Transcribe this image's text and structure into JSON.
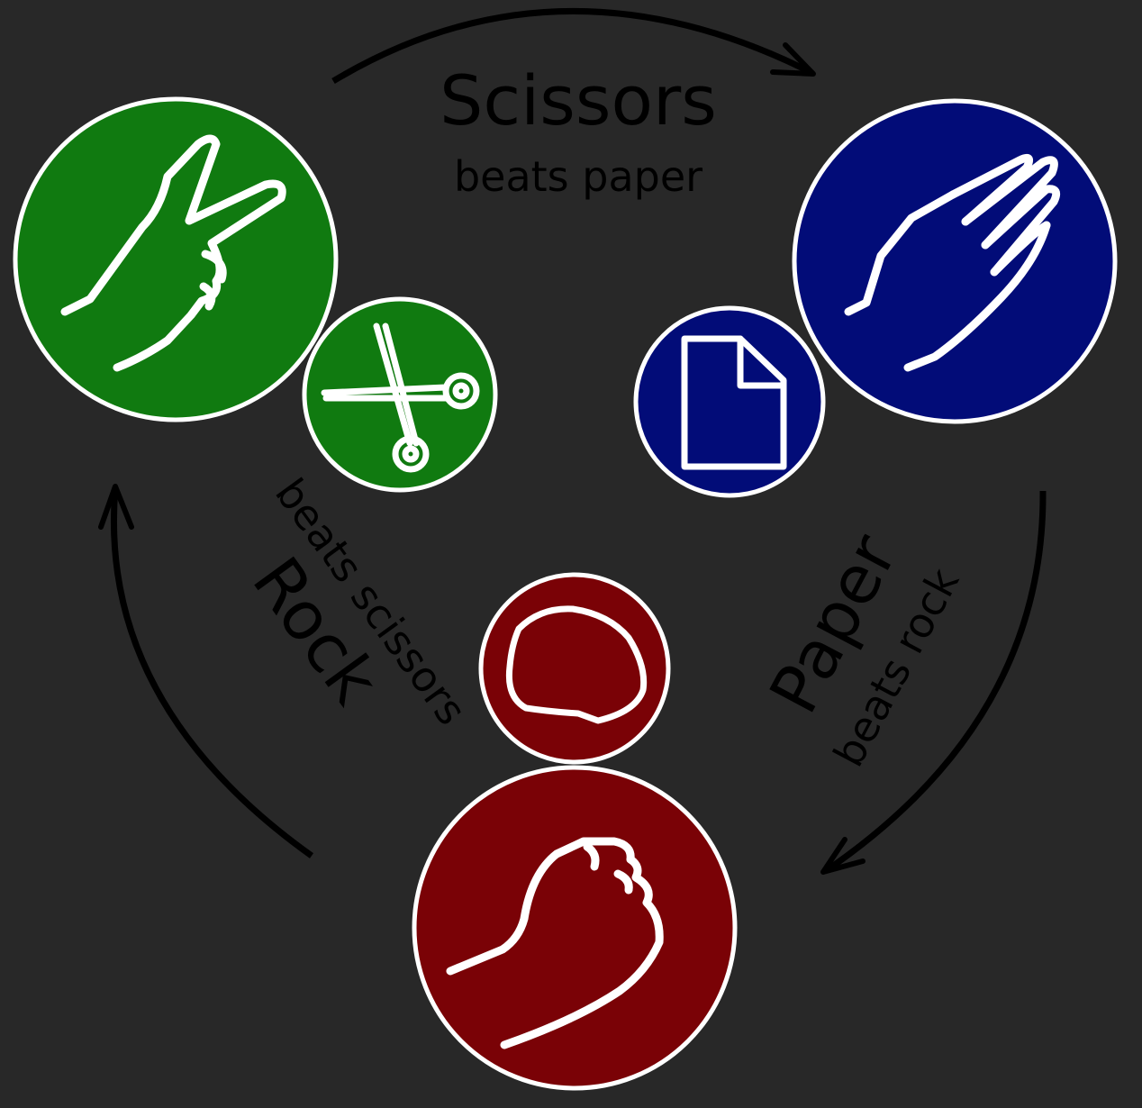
{
  "colors": {
    "background": "#282828",
    "scissors": "#107a10",
    "paper": "#020c78",
    "rock": "#7a0206",
    "outline": "#ffffff",
    "text": "#000000"
  },
  "scissors": {
    "title": "Scissors",
    "subtitle": "beats paper",
    "hand_icon": "peace-sign-hand-icon",
    "symbol_icon": "scissors-icon"
  },
  "paper": {
    "title": "Paper",
    "subtitle": "beats rock",
    "hand_icon": "open-hand-icon",
    "symbol_icon": "document-icon"
  },
  "rock": {
    "title": "Rock",
    "subtitle": "beats scissors",
    "hand_icon": "fist-icon",
    "symbol_icon": "stone-icon"
  }
}
